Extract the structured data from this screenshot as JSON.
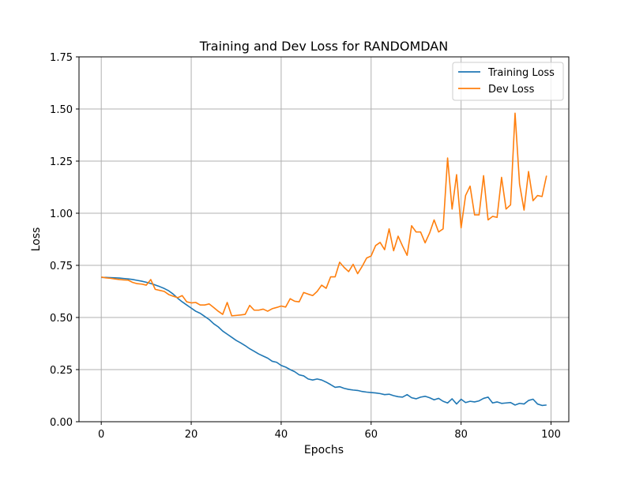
{
  "chart_data": {
    "type": "line",
    "title": "Training and Dev Loss for RANDOMDAN",
    "xlabel": "Epochs",
    "ylabel": "Loss",
    "xlim": [
      -4.95,
      103.95
    ],
    "ylim": [
      0,
      1.75
    ],
    "xticks": [
      0,
      20,
      40,
      60,
      80,
      100
    ],
    "yticks": [
      0.0,
      0.25,
      0.5,
      0.75,
      1.0,
      1.25,
      1.5,
      1.75
    ],
    "xtick_labels": [
      "0",
      "20",
      "40",
      "60",
      "80",
      "100"
    ],
    "ytick_labels": [
      "0.00",
      "0.25",
      "0.50",
      "0.75",
      "1.00",
      "1.25",
      "1.50",
      "1.75"
    ],
    "grid": true,
    "legend_position": "top-right",
    "x": [
      0,
      1,
      2,
      3,
      4,
      5,
      6,
      7,
      8,
      9,
      10,
      11,
      12,
      13,
      14,
      15,
      16,
      17,
      18,
      19,
      20,
      21,
      22,
      23,
      24,
      25,
      26,
      27,
      28,
      29,
      30,
      31,
      32,
      33,
      34,
      35,
      36,
      37,
      38,
      39,
      40,
      41,
      42,
      43,
      44,
      45,
      46,
      47,
      48,
      49,
      50,
      51,
      52,
      53,
      54,
      55,
      56,
      57,
      58,
      59,
      60,
      61,
      62,
      63,
      64,
      65,
      66,
      67,
      68,
      69,
      70,
      71,
      72,
      73,
      74,
      75,
      76,
      77,
      78,
      79,
      80,
      81,
      82,
      83,
      84,
      85,
      86,
      87,
      88,
      89,
      90,
      91,
      92,
      93,
      94,
      95,
      96,
      97,
      98,
      99
    ],
    "series": [
      {
        "name": "Training Loss",
        "color": "#1f77b4",
        "values": [
          0.692,
          0.692,
          0.691,
          0.69,
          0.689,
          0.687,
          0.685,
          0.682,
          0.678,
          0.674,
          0.669,
          0.663,
          0.656,
          0.648,
          0.639,
          0.628,
          0.612,
          0.592,
          0.575,
          0.56,
          0.545,
          0.53,
          0.52,
          0.505,
          0.49,
          0.47,
          0.455,
          0.435,
          0.42,
          0.405,
          0.39,
          0.378,
          0.365,
          0.35,
          0.338,
          0.325,
          0.315,
          0.305,
          0.29,
          0.285,
          0.27,
          0.262,
          0.25,
          0.24,
          0.225,
          0.22,
          0.205,
          0.2,
          0.205,
          0.2,
          0.19,
          0.178,
          0.165,
          0.168,
          0.16,
          0.155,
          0.152,
          0.15,
          0.145,
          0.142,
          0.14,
          0.138,
          0.135,
          0.13,
          0.132,
          0.125,
          0.12,
          0.118,
          0.13,
          0.115,
          0.11,
          0.118,
          0.122,
          0.115,
          0.105,
          0.112,
          0.098,
          0.09,
          0.11,
          0.085,
          0.108,
          0.092,
          0.098,
          0.095,
          0.1,
          0.112,
          0.118,
          0.09,
          0.095,
          0.088,
          0.09,
          0.092,
          0.08,
          0.088,
          0.085,
          0.102,
          0.108,
          0.085,
          0.078,
          0.08
        ]
      },
      {
        "name": "Dev Loss",
        "color": "#ff7f0e",
        "values": [
          0.694,
          0.69,
          0.688,
          0.685,
          0.682,
          0.68,
          0.679,
          0.668,
          0.662,
          0.66,
          0.655,
          0.682,
          0.635,
          0.63,
          0.625,
          0.61,
          0.602,
          0.595,
          0.605,
          0.575,
          0.57,
          0.572,
          0.56,
          0.56,
          0.565,
          0.548,
          0.53,
          0.515,
          0.572,
          0.508,
          0.51,
          0.512,
          0.515,
          0.558,
          0.535,
          0.535,
          0.54,
          0.53,
          0.542,
          0.548,
          0.555,
          0.55,
          0.59,
          0.578,
          0.575,
          0.62,
          0.612,
          0.605,
          0.625,
          0.655,
          0.64,
          0.695,
          0.695,
          0.765,
          0.74,
          0.72,
          0.755,
          0.71,
          0.745,
          0.785,
          0.795,
          0.845,
          0.86,
          0.825,
          0.925,
          0.82,
          0.89,
          0.842,
          0.798,
          0.94,
          0.91,
          0.91,
          0.858,
          0.905,
          0.968,
          0.91,
          0.925,
          1.265,
          1.02,
          1.185,
          0.93,
          1.085,
          1.13,
          0.992,
          0.992,
          1.18,
          0.968,
          0.985,
          0.98,
          1.172,
          1.02,
          1.04,
          1.48,
          1.14,
          1.015,
          1.2,
          1.06,
          1.085,
          1.08,
          1.18
        ]
      }
    ]
  }
}
